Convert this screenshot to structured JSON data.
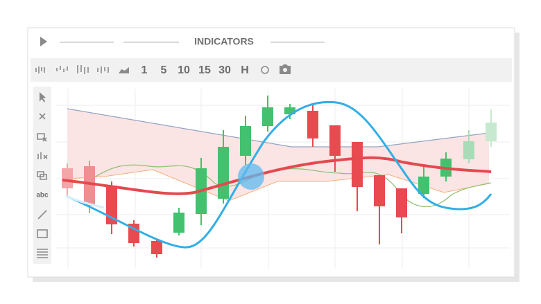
{
  "header": {
    "title": "INDICATORS"
  },
  "toolbar": {
    "buttons": [
      "1",
      "5",
      "10",
      "15",
      "30",
      "H"
    ]
  },
  "sidebar": {
    "text_tool": "abc"
  }
}
